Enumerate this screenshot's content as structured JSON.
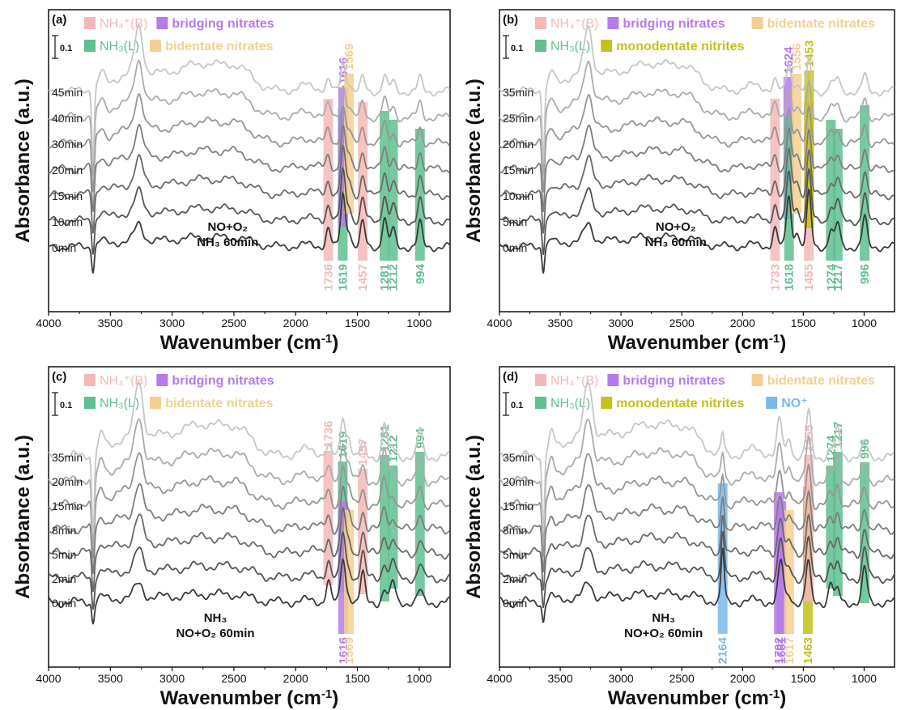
{
  "figure": {
    "x_label_main": "Wavenumber (cm",
    "x_label_sup": "-1",
    "x_label_close": ")",
    "y_label": "Absorbance (a.u.)",
    "scale_bar_label": "0.1"
  },
  "chart_data": [
    {
      "type": "line",
      "panel_label": "(a)",
      "xlim": [
        4000,
        750
      ],
      "x_reversed": true,
      "x_ticks": [
        4000,
        3500,
        3000,
        2500,
        2000,
        1500,
        1000
      ],
      "series_labels": [
        "0min",
        "10min",
        "15min",
        "20min",
        "30min",
        "40min",
        "45min"
      ],
      "condition_lines": [
        "NO+O₂",
        "NH₃ 60min"
      ],
      "legend_rows": [
        [
          {
            "text": "NH₄⁺(B)",
            "color": "#f4b8b8"
          },
          {
            "text": "bridging nitrates",
            "color": "#b57bea"
          }
        ],
        [
          {
            "text": "NH₃(L)",
            "color": "#5fbf8f"
          },
          {
            "text": "bidentate nitrates",
            "color": "#f4cf90"
          }
        ]
      ],
      "peaks": [
        {
          "pos": 1736,
          "label": "1736",
          "color": "#f4b8b8",
          "label_where": "below"
        },
        {
          "pos": 1619,
          "label": "1619",
          "color": "#5fbf8f",
          "label_where": "below"
        },
        {
          "pos": 1616,
          "label": "1616",
          "color": "#b57bea",
          "label_where": "above"
        },
        {
          "pos": 1569,
          "label": "1569",
          "color": "#f4cf90",
          "label_where": "above"
        },
        {
          "pos": 1457,
          "label": "1457",
          "color": "#f4b8b8",
          "label_where": "below"
        },
        {
          "pos": 1281,
          "label": "1281",
          "color": "#5fbf8f",
          "label_where": "below"
        },
        {
          "pos": 1212,
          "label": "1212",
          "color": "#5fbf8f",
          "label_where": "below"
        },
        {
          "pos": 994,
          "label": "994",
          "color": "#5fbf8f",
          "label_where": "below"
        }
      ]
    },
    {
      "type": "line",
      "panel_label": "(b)",
      "xlim": [
        4000,
        750
      ],
      "x_reversed": true,
      "x_ticks": [
        4000,
        3500,
        3000,
        2500,
        2000,
        1500,
        1000
      ],
      "series_labels": [
        "0min",
        "5min",
        "10min",
        "15min",
        "20min",
        "25min",
        "35min"
      ],
      "condition_lines": [
        "NO+O₂",
        "NH₃ 60min"
      ],
      "legend_rows": [
        [
          {
            "text": "NH₄⁺(B)",
            "color": "#f4b8b8"
          },
          {
            "text": "bridging nitrates",
            "color": "#b57bea"
          },
          {
            "text": "bidentate nitrates",
            "color": "#f4cf90"
          }
        ],
        [
          {
            "text": "NH₃(L)",
            "color": "#5fbf8f"
          },
          {
            "text": "monodentate nitrites",
            "color": "#c2c21a"
          }
        ]
      ],
      "peaks": [
        {
          "pos": 1733,
          "label": "1733",
          "color": "#f4b8b8",
          "label_where": "below"
        },
        {
          "pos": 1624,
          "label": "1624",
          "color": "#b57bea",
          "label_where": "above"
        },
        {
          "pos": 1618,
          "label": "1618",
          "color": "#5fbf8f",
          "label_where": "below"
        },
        {
          "pos": 1556,
          "label": "1556",
          "color": "#f4cf90",
          "label_where": "above"
        },
        {
          "pos": 1455,
          "label": "1455",
          "color": "#f4b8b8",
          "label_where": "below"
        },
        {
          "pos": 1453,
          "label": "1453",
          "color": "#c2c21a",
          "label_where": "above"
        },
        {
          "pos": 1274,
          "label": "1274",
          "color": "#5fbf8f",
          "label_where": "below"
        },
        {
          "pos": 1217,
          "label": "1217",
          "color": "#5fbf8f",
          "label_where": "below"
        },
        {
          "pos": 996,
          "label": "996",
          "color": "#5fbf8f",
          "label_where": "below"
        }
      ]
    },
    {
      "type": "line",
      "panel_label": "(c)",
      "xlim": [
        4000,
        750
      ],
      "x_reversed": true,
      "x_ticks": [
        4000,
        3500,
        3000,
        2500,
        2000,
        1500,
        1000
      ],
      "series_labels": [
        "0min",
        "2min",
        "5min",
        "8min",
        "15min",
        "20min",
        "35min"
      ],
      "condition_lines": [
        "NH₃",
        "NO+O₂ 60min"
      ],
      "legend_rows": [
        [
          {
            "text": "NH₄⁺(B)",
            "color": "#f4b8b8"
          },
          {
            "text": "bridging nitrates",
            "color": "#b57bea"
          }
        ],
        [
          {
            "text": "NH₃(L)",
            "color": "#5fbf8f"
          },
          {
            "text": "bidentate nitrates",
            "color": "#f4cf90"
          }
        ]
      ],
      "peaks": [
        {
          "pos": 1736,
          "label": "1736",
          "color": "#f4b8b8",
          "label_where": "above"
        },
        {
          "pos": 1619,
          "label": "1619",
          "color": "#5fbf8f",
          "label_where": "above"
        },
        {
          "pos": 1616,
          "label": "1616",
          "color": "#b57bea",
          "label_where": "below"
        },
        {
          "pos": 1569,
          "label": "1569",
          "color": "#f4cf90",
          "label_where": "below"
        },
        {
          "pos": 1457,
          "label": "1457",
          "color": "#f4b8b8",
          "label_where": "above"
        },
        {
          "pos": 1281,
          "label": "1281",
          "color": "#5fbf8f",
          "label_where": "above"
        },
        {
          "pos": 1212,
          "label": "1212",
          "color": "#5fbf8f",
          "label_where": "above"
        },
        {
          "pos": 994,
          "label": "994",
          "color": "#5fbf8f",
          "label_where": "above"
        }
      ]
    },
    {
      "type": "line",
      "panel_label": "(d)",
      "xlim": [
        4000,
        750
      ],
      "x_reversed": true,
      "x_ticks": [
        4000,
        3500,
        3000,
        2500,
        2000,
        1500,
        1000
      ],
      "series_labels": [
        "0min",
        "2min",
        "5min",
        "8min",
        "15min",
        "20min",
        "35min"
      ],
      "condition_lines": [
        "NH₃",
        "NO+O₂ 60min"
      ],
      "legend_rows": [
        [
          {
            "text": "NH₄⁺(B)",
            "color": "#f4b8b8"
          },
          {
            "text": "bridging nitrates",
            "color": "#b57bea"
          },
          {
            "text": "bidentate nitrates",
            "color": "#f4cf90"
          }
        ],
        [
          {
            "text": "NH₃(L)",
            "color": "#5fbf8f"
          },
          {
            "text": "monodentate nitrites",
            "color": "#c2c21a"
          },
          {
            "text": "NO⁺",
            "color": "#7ab8ea"
          }
        ]
      ],
      "peaks": [
        {
          "pos": 2164,
          "label": "2164",
          "color": "#7ab8ea",
          "label_where": "below"
        },
        {
          "pos": 1702,
          "label": "1702",
          "color": "#b57bea",
          "label_where": "below"
        },
        {
          "pos": 1681,
          "label": "1681",
          "color": "#b57bea",
          "label_where": "below"
        },
        {
          "pos": 1617,
          "label": "1617",
          "color": "#f4cf90",
          "label_where": "below"
        },
        {
          "pos": 1463,
          "label": "1463",
          "color": "#c2c21a",
          "label_where": "below"
        },
        {
          "pos": 1455,
          "label": "1455",
          "color": "#f4b8b8",
          "label_where": "above"
        },
        {
          "pos": 1274,
          "label": "1274",
          "color": "#5fbf8f",
          "label_where": "above"
        },
        {
          "pos": 1217,
          "label": "1217",
          "color": "#5fbf8f",
          "label_where": "above"
        },
        {
          "pos": 996,
          "label": "996",
          "color": "#5fbf8f",
          "label_where": "above"
        }
      ]
    }
  ]
}
